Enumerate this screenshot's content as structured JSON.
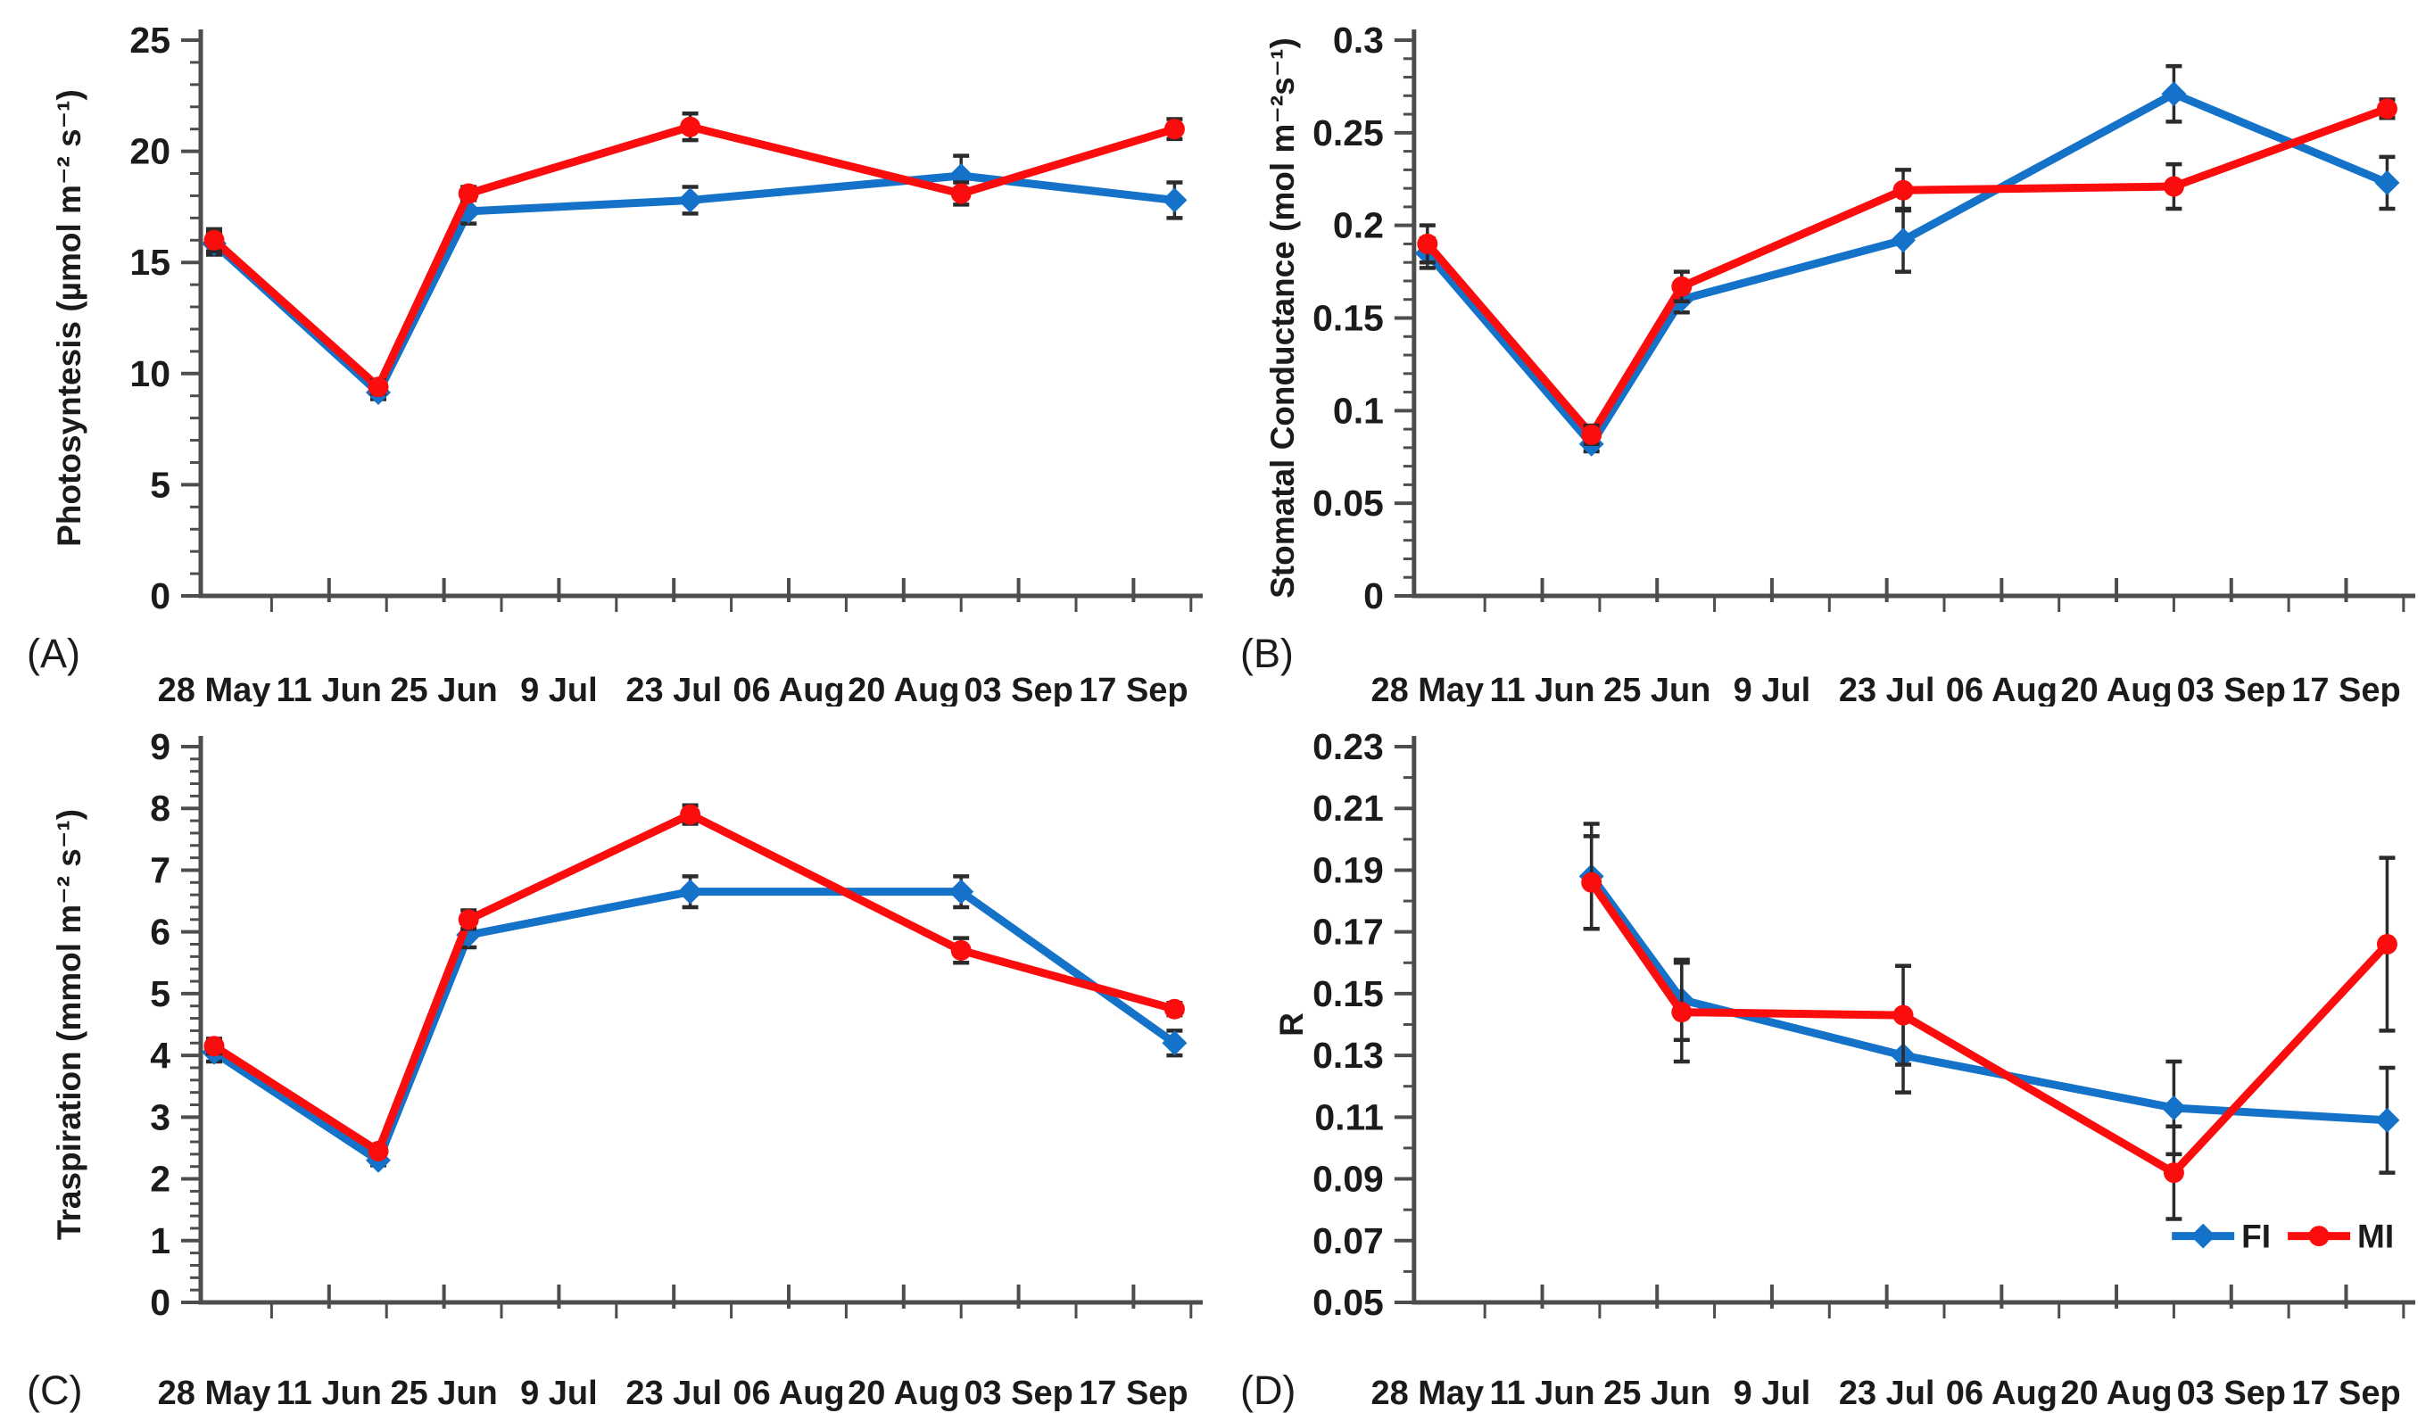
{
  "page": {
    "background": "#ffffff",
    "description_texts": {
      "panel_letters": [
        "(A)",
        "(B)",
        "(C)",
        "(D)"
      ]
    }
  },
  "colors": {
    "fi_blue": "#1473C8",
    "mi_red": "#FB0D0D",
    "axis": "#4D4D4D",
    "error_bar": "#2B2B2B",
    "text": "#1B1B1B"
  },
  "legend": {
    "items": [
      {
        "label": "FI",
        "color_key": "fi_blue",
        "marker": "diamond"
      },
      {
        "label": "MI",
        "color_key": "mi_red",
        "marker": "circle"
      }
    ],
    "location": "bottom-right of panel D"
  },
  "x_axis": {
    "tick_labels": [
      "28 May",
      "11 Jun",
      "25 Jun",
      "9 Jul",
      "23 Jul",
      "06 Aug",
      "20 Aug",
      "03 Sep",
      "17 Sep"
    ],
    "label_days": [
      0,
      14,
      28,
      42,
      56,
      70,
      84,
      98,
      112
    ],
    "minor_tick_days": [
      7,
      21,
      35,
      49,
      63,
      77,
      91,
      105,
      119
    ]
  },
  "chart_data": [
    {
      "id": "A",
      "panel_label": "(A)",
      "type": "line",
      "row": "top",
      "y_axis": {
        "label": "Photosyntesis (µmol m⁻² s⁻¹)",
        "min": 0,
        "max": 25,
        "minor_step": 1,
        "ticks": [
          {
            "v": 25,
            "t": "25"
          },
          {
            "v": 20,
            "t": "20"
          },
          {
            "v": 15,
            "t": "15"
          },
          {
            "v": 10,
            "t": "10"
          },
          {
            "v": 5,
            "t": "5"
          },
          {
            "v": 0,
            "t": "0"
          }
        ]
      },
      "series": [
        {
          "name": "FI",
          "color_key": "fi_blue",
          "marker": "diamond",
          "x_days": [
            0,
            20,
            31,
            58,
            91,
            117
          ],
          "values": [
            15.85,
            9.15,
            17.3,
            17.8,
            18.9,
            17.8
          ],
          "errors": [
            0.5,
            0.3,
            0.55,
            0.6,
            0.9,
            0.8
          ]
        },
        {
          "name": "MI",
          "color_key": "mi_red",
          "marker": "circle",
          "x_days": [
            0,
            20,
            31,
            58,
            91,
            117
          ],
          "values": [
            16.0,
            9.4,
            18.1,
            21.1,
            18.1,
            21.0
          ],
          "errors": [
            0.5,
            0.3,
            0.3,
            0.6,
            0.5,
            0.45
          ]
        }
      ],
      "show_legend": false
    },
    {
      "id": "B",
      "panel_label": "(B)",
      "type": "line",
      "row": "top",
      "y_axis": {
        "label": "Stomatal Conductance (mol m⁻²s⁻¹)",
        "min": 0,
        "max": 0.3,
        "minor_step": 0.01,
        "ticks": [
          {
            "v": 0.3,
            "t": "0.3"
          },
          {
            "v": 0.25,
            "t": "0.25"
          },
          {
            "v": 0.2,
            "t": "0.2"
          },
          {
            "v": 0.15,
            "t": "0.15"
          },
          {
            "v": 0.1,
            "t": "0.1"
          },
          {
            "v": 0.05,
            "t": "0.05"
          },
          {
            "v": 0,
            "t": "0"
          }
        ]
      },
      "series": [
        {
          "name": "FI",
          "color_key": "fi_blue",
          "marker": "diamond",
          "x_days": [
            0,
            20,
            31,
            58,
            91,
            117
          ],
          "values": [
            0.185,
            0.082,
            0.16,
            0.192,
            0.271,
            0.223
          ],
          "errors": [
            0.008,
            0.004,
            0.007,
            0.017,
            0.015,
            0.014
          ]
        },
        {
          "name": "MI",
          "color_key": "mi_red",
          "marker": "circle",
          "x_days": [
            0,
            20,
            31,
            58,
            91,
            117
          ],
          "values": [
            0.19,
            0.087,
            0.167,
            0.219,
            0.221,
            0.263
          ],
          "errors": [
            0.01,
            0.005,
            0.008,
            0.011,
            0.012,
            0.005
          ]
        }
      ],
      "show_legend": false
    },
    {
      "id": "C",
      "panel_label": "(C)",
      "type": "line",
      "row": "bottom",
      "y_axis": {
        "label": "Traspiration (mmol m⁻² s⁻¹)",
        "min": 0,
        "max": 9,
        "minor_step": 0.2,
        "ticks": [
          {
            "v": 9,
            "t": "9"
          },
          {
            "v": 8,
            "t": "8"
          },
          {
            "v": 7,
            "t": "7"
          },
          {
            "v": 6,
            "t": "6"
          },
          {
            "v": 5,
            "t": "5"
          },
          {
            "v": 4,
            "t": "4"
          },
          {
            "v": 3,
            "t": "3"
          },
          {
            "v": 2,
            "t": "2"
          },
          {
            "v": 1,
            "t": "1"
          },
          {
            "v": 0,
            "t": "0"
          }
        ]
      },
      "series": [
        {
          "name": "FI",
          "color_key": "fi_blue",
          "marker": "diamond",
          "x_days": [
            0,
            20,
            31,
            58,
            91,
            117
          ],
          "values": [
            4.05,
            2.3,
            5.95,
            6.65,
            6.65,
            4.2
          ],
          "errors": [
            0.15,
            0.08,
            0.2,
            0.25,
            0.25,
            0.2
          ]
        },
        {
          "name": "MI",
          "color_key": "mi_red",
          "marker": "circle",
          "x_days": [
            0,
            20,
            31,
            58,
            91,
            117
          ],
          "values": [
            4.15,
            2.45,
            6.2,
            7.9,
            5.7,
            4.75
          ],
          "errors": [
            0.12,
            0.08,
            0.15,
            0.15,
            0.2,
            0.1
          ]
        }
      ],
      "show_legend": false
    },
    {
      "id": "D",
      "panel_label": "(D)",
      "type": "line",
      "row": "bottom",
      "y_axis": {
        "label": "R",
        "min": 0.05,
        "max": 0.23,
        "minor_step": 0.01,
        "ticks": [
          {
            "v": 0.23,
            "t": "0.23"
          },
          {
            "v": 0.21,
            "t": "0.21"
          },
          {
            "v": 0.19,
            "t": "0.19"
          },
          {
            "v": 0.17,
            "t": "0.17"
          },
          {
            "v": 0.15,
            "t": "0.15"
          },
          {
            "v": 0.13,
            "t": "0.13"
          },
          {
            "v": 0.11,
            "t": "0.11"
          },
          {
            "v": 0.09,
            "t": "0.09"
          },
          {
            "v": 0.07,
            "t": "0.07"
          },
          {
            "v": 0.05,
            "t": "0.05"
          }
        ]
      },
      "series": [
        {
          "name": "FI",
          "color_key": "fi_blue",
          "marker": "diamond",
          "x_days": [
            20,
            31,
            58,
            91,
            117
          ],
          "values": [
            0.188,
            0.148,
            0.13,
            0.113,
            0.109
          ],
          "errors": [
            0.017,
            0.013,
            0.012,
            0.015,
            0.017
          ]
        },
        {
          "name": "MI",
          "color_key": "mi_red",
          "marker": "circle",
          "x_days": [
            20,
            31,
            58,
            91,
            117
          ],
          "values": [
            0.186,
            0.144,
            0.143,
            0.092,
            0.166
          ],
          "errors": [
            0.015,
            0.016,
            0.016,
            0.015,
            0.028
          ]
        }
      ],
      "show_legend": true
    }
  ]
}
